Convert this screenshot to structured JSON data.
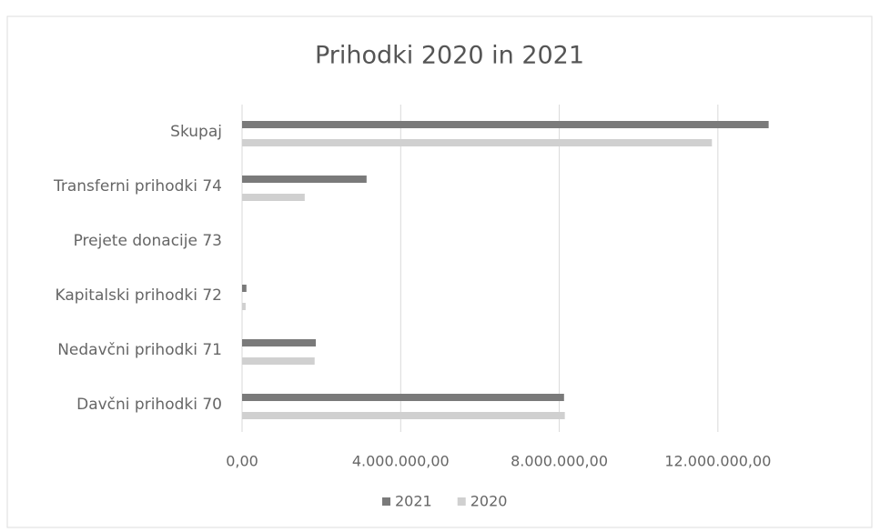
{
  "chart_data": {
    "type": "hbar",
    "title": "Prihodki 2020 in 2021",
    "categories": [
      "Davčni prihodki 70",
      "Nedavčni prihodki 71",
      "Kapitalski prihodki 72",
      "Prejete donacije 73",
      "Transferni prihodki 74",
      "Skupaj"
    ],
    "series": [
      {
        "name": "2021",
        "color": "#7a7a7a",
        "values": [
          8120000,
          1860000,
          110000,
          0,
          3140000,
          13280000
        ]
      },
      {
        "name": "2020",
        "color": "#d0d0d0",
        "values": [
          8140000,
          1830000,
          90000,
          0,
          1580000,
          11850000
        ]
      }
    ],
    "xlim": [
      0,
      14000000
    ],
    "xticks": [
      {
        "value": 0,
        "label": "0,00"
      },
      {
        "value": 4000000,
        "label": "4.000.000,00"
      },
      {
        "value": 8000000,
        "label": "8.000.000,00"
      },
      {
        "value": 12000000,
        "label": "12.000.000,00"
      }
    ],
    "grid": true
  }
}
